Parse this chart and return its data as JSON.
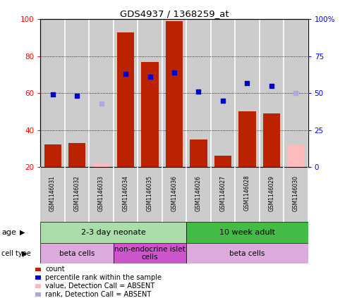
{
  "title": "GDS4937 / 1368259_at",
  "samples": [
    "GSM1146031",
    "GSM1146032",
    "GSM1146033",
    "GSM1146034",
    "GSM1146035",
    "GSM1146036",
    "GSM1146026",
    "GSM1146027",
    "GSM1146028",
    "GSM1146029",
    "GSM1146030"
  ],
  "counts": [
    32,
    33,
    null,
    93,
    77,
    99,
    35,
    26,
    50,
    49,
    null
  ],
  "counts_absent": [
    null,
    null,
    22,
    null,
    null,
    null,
    null,
    null,
    null,
    null,
    32
  ],
  "ranks": [
    49,
    48,
    null,
    63,
    61,
    64,
    51,
    45,
    57,
    55,
    null
  ],
  "ranks_absent": [
    null,
    null,
    43,
    null,
    null,
    null,
    null,
    null,
    null,
    null,
    50
  ],
  "left_ylim": [
    20,
    100
  ],
  "left_yticks": [
    20,
    40,
    60,
    80,
    100
  ],
  "right_yticks": [
    0,
    25,
    50,
    75,
    100
  ],
  "right_yticklabels": [
    "0",
    "25",
    "50",
    "75",
    "100%"
  ],
  "bar_color": "#bb2200",
  "bar_absent_color": "#ffbbbb",
  "dot_color": "#0000cc",
  "dot_absent_color": "#aaaadd",
  "bg_color": "#cccccc",
  "age_groups": [
    {
      "label": "2-3 day neonate",
      "start": 0,
      "end": 6,
      "color": "#aaddaa"
    },
    {
      "label": "10 week adult",
      "start": 6,
      "end": 11,
      "color": "#44bb44"
    }
  ],
  "cell_types": [
    {
      "label": "beta cells",
      "start": 0,
      "end": 3,
      "color": "#ddaadd"
    },
    {
      "label": "non-endocrine islet\ncells",
      "start": 3,
      "end": 6,
      "color": "#cc55cc"
    },
    {
      "label": "beta cells",
      "start": 6,
      "end": 11,
      "color": "#ddaadd"
    }
  ],
  "legend_items": [
    {
      "label": "count",
      "color": "#bb2200"
    },
    {
      "label": "percentile rank within the sample",
      "color": "#0000cc"
    },
    {
      "label": "value, Detection Call = ABSENT",
      "color": "#ffbbbb"
    },
    {
      "label": "rank, Detection Call = ABSENT",
      "color": "#aaaadd"
    }
  ]
}
